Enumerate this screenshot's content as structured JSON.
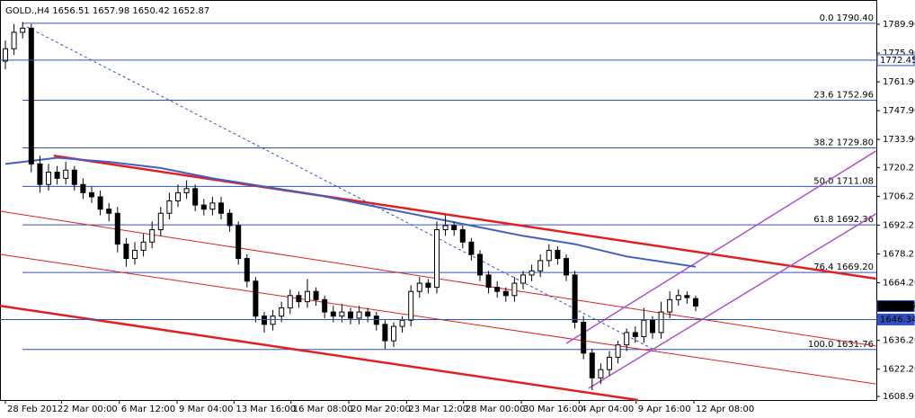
{
  "chart_data": {
    "type": "candlestick",
    "title": "GOLD.,H4  1656.51 1657.98 1650.42 1652.87",
    "x": [
      0,
      1,
      2,
      3,
      4,
      5,
      6,
      7,
      8,
      9,
      10,
      11,
      12,
      13,
      14,
      15,
      16,
      17,
      18,
      19,
      20,
      21,
      22,
      23,
      24,
      25,
      26,
      27,
      28,
      29,
      30,
      31,
      32,
      33,
      34,
      35,
      36,
      37,
      38,
      39,
      40,
      41,
      42,
      43,
      44,
      45,
      46,
      47,
      48,
      49,
      50,
      51,
      52,
      53,
      54,
      55,
      56,
      57,
      58,
      59,
      60,
      61,
      62,
      63,
      64,
      65,
      66,
      67,
      68,
      69,
      70,
      71,
      72,
      73,
      74,
      75,
      76,
      77,
      78,
      79,
      80
    ],
    "open": [
      1772,
      1778,
      1786,
      1788,
      1722,
      1712,
      1718,
      1715,
      1719,
      1712,
      1708,
      1706,
      1700,
      1698,
      1683,
      1676,
      1680,
      1684,
      1690,
      1698,
      1704,
      1708,
      1710,
      1702,
      1700,
      1703,
      1698,
      1692,
      1676,
      1665,
      1648,
      1644,
      1648,
      1652,
      1658,
      1655,
      1660,
      1656,
      1650,
      1648,
      1650,
      1647,
      1650,
      1648,
      1644,
      1636,
      1643,
      1646,
      1660,
      1664,
      1662,
      1690,
      1692,
      1690,
      1684,
      1678,
      1668,
      1662,
      1660,
      1658,
      1664,
      1668,
      1670,
      1675,
      1680,
      1676,
      1668,
      1645,
      1630,
      1618,
      1622,
      1628,
      1634,
      1640,
      1638,
      1646,
      1640,
      1650,
      1656,
      1658,
      1656.51
    ],
    "high": [
      1782,
      1790,
      1791,
      1790,
      1726,
      1722,
      1721,
      1723,
      1721,
      1715,
      1711,
      1709,
      1703,
      1701,
      1686,
      1684,
      1688,
      1694,
      1701,
      1708,
      1712,
      1714,
      1712,
      1705,
      1706,
      1706,
      1700,
      1694,
      1678,
      1667,
      1650,
      1651,
      1655,
      1661,
      1660,
      1666,
      1662,
      1658,
      1653,
      1654,
      1652,
      1653,
      1652,
      1650,
      1646,
      1645,
      1648,
      1663,
      1667,
      1666,
      1694,
      1697,
      1694,
      1692,
      1686,
      1680,
      1670,
      1665,
      1662,
      1667,
      1670,
      1673,
      1678,
      1683,
      1682,
      1678,
      1670,
      1648,
      1632,
      1625,
      1631,
      1636,
      1642,
      1643,
      1652,
      1648,
      1655,
      1660,
      1661,
      1660,
      1657.98
    ],
    "low": [
      1768,
      1775,
      1783,
      1718,
      1708,
      1709,
      1712,
      1712,
      1709,
      1705,
      1703,
      1697,
      1694,
      1679,
      1672,
      1673,
      1677,
      1681,
      1687,
      1695,
      1701,
      1705,
      1699,
      1697,
      1697,
      1695,
      1689,
      1673,
      1662,
      1645,
      1640,
      1641,
      1645,
      1649,
      1652,
      1652,
      1653,
      1647,
      1645,
      1645,
      1644,
      1644,
      1645,
      1641,
      1632,
      1633,
      1640,
      1643,
      1657,
      1659,
      1659,
      1687,
      1687,
      1681,
      1675,
      1665,
      1659,
      1657,
      1655,
      1655,
      1661,
      1665,
      1667,
      1672,
      1673,
      1665,
      1642,
      1627,
      1612,
      1615,
      1619,
      1625,
      1631,
      1635,
      1635,
      1637,
      1637,
      1647,
      1653,
      1654,
      1650.42
    ],
    "close": [
      1778,
      1786,
      1788,
      1722,
      1712,
      1718,
      1715,
      1719,
      1712,
      1708,
      1706,
      1700,
      1698,
      1683,
      1676,
      1680,
      1684,
      1690,
      1698,
      1704,
      1708,
      1710,
      1702,
      1700,
      1703,
      1698,
      1692,
      1676,
      1665,
      1648,
      1644,
      1648,
      1652,
      1658,
      1655,
      1660,
      1656,
      1650,
      1648,
      1650,
      1647,
      1650,
      1648,
      1644,
      1636,
      1643,
      1646,
      1660,
      1664,
      1662,
      1690,
      1692,
      1690,
      1684,
      1678,
      1668,
      1662,
      1660,
      1658,
      1664,
      1668,
      1670,
      1675,
      1680,
      1676,
      1668,
      1645,
      1630,
      1618,
      1622,
      1628,
      1634,
      1640,
      1638,
      1646,
      1640,
      1650,
      1656,
      1658,
      1657,
      1652.87
    ],
    "ma": {
      "color": "#3f5fc4",
      "x": [
        0,
        6,
        12,
        18,
        24,
        30,
        36,
        42,
        48,
        54,
        60,
        66,
        72,
        80
      ],
      "values": [
        1722,
        1725,
        1723,
        1720,
        1715,
        1711,
        1707,
        1702,
        1697,
        1692,
        1687,
        1683,
        1677,
        1672
      ]
    },
    "xlim": [
      -0.625,
      100.94
    ],
    "ylim": [
      1607.2,
      1801.7
    ],
    "yticks": [
      {
        "value": 1789.9,
        "label": "1789.90"
      },
      {
        "value": 1775.9,
        "label": "1775.90"
      },
      {
        "value": 1761.9,
        "label": "1761.90"
      },
      {
        "value": 1747.9,
        "label": "1747.90"
      },
      {
        "value": 1733.9,
        "label": "1733.90"
      },
      1720.25,
      1706.25,
      1692.25,
      1678.25,
      {
        "value": 1664.2,
        "label": "1664.20"
      },
      {
        "value": 1636.2,
        "label": "1636.20"
      },
      {
        "value": 1622.2,
        "label": "1622.20"
      },
      1608.93
    ],
    "xticks": [
      {
        "value": 0,
        "label": "28 Feb 2012"
      },
      {
        "value": 6.5,
        "label": "2 Mar 00:00"
      },
      {
        "value": 13.2,
        "label": "6 Mar 12:00"
      },
      {
        "value": 19.9,
        "label": "9 Mar 04:00"
      },
      {
        "value": 26.5,
        "label": "13 Mar 16:00"
      },
      {
        "value": 33.1,
        "label": "16 Mar 08:00"
      },
      {
        "value": 39.8,
        "label": "20 Mar 20:00"
      },
      {
        "value": 46.5,
        "label": "23 Mar 12:00"
      },
      {
        "value": 53.1,
        "label": "28 Mar 00:00"
      },
      {
        "value": 59.8,
        "label": "30 Mar 16:00"
      },
      {
        "value": 66.5,
        "label": "4 Apr 04:00"
      },
      {
        "value": 73.1,
        "label": "9 Apr 16:00"
      },
      {
        "value": 79.8,
        "label": "12 Apr 08:00"
      }
    ],
    "fib_levels": [
      {
        "label": "0.0 1790.40",
        "value": 1790.4
      },
      {
        "label": "23.6 1752.96",
        "value": 1752.96
      },
      {
        "label": "38.2 1729.80",
        "value": 1729.8
      },
      {
        "label": "50.0 1711.08",
        "value": 1711.08
      },
      {
        "label": "61.8 1692.36",
        "value": 1692.36
      },
      {
        "label": "76.4 1669.20",
        "value": 1669.2
      },
      {
        "label": "100.0 1631.76",
        "value": 1631.76
      }
    ],
    "fib_color": "#3050c0",
    "price_markers": [
      {
        "value": 1772.45,
        "fill": "#ffffff",
        "text": "#3050c0",
        "line": true
      },
      {
        "value": 1652.87,
        "fill": "#000000",
        "text": "#ffffff",
        "line": false
      },
      {
        "value": 1646.34,
        "fill": "#3050c0",
        "text": "#ffffff",
        "line": true
      }
    ],
    "trend_lines": [
      {
        "color": "#e02020",
        "width": 2.5,
        "dash": false,
        "points": [
          [
            5.6,
            1726
          ],
          [
            100.9,
            1666.2
          ]
        ]
      },
      {
        "color": "#e02020",
        "width": 1,
        "dash": false,
        "points": [
          [
            -0.6,
            1699
          ],
          [
            100.9,
            1633.4
          ]
        ]
      },
      {
        "color": "#e02020",
        "width": 1,
        "dash": false,
        "points": [
          [
            -0.6,
            1678
          ],
          [
            100.9,
            1615
          ]
        ]
      },
      {
        "color": "#e02020",
        "width": 2.5,
        "dash": false,
        "points": [
          [
            -0.6,
            1653
          ],
          [
            73.3,
            1607.2
          ]
        ]
      },
      {
        "color": "#b050d0",
        "width": 1.5,
        "dash": false,
        "points": [
          [
            65,
            1634.7
          ],
          [
            100.9,
            1728.3
          ]
        ]
      },
      {
        "color": "#b050d0",
        "width": 1.5,
        "dash": false,
        "points": [
          [
            67.6,
            1612.9
          ],
          [
            100.9,
            1697.7
          ]
        ]
      },
      {
        "color": "#3050c0",
        "width": 1,
        "dash": true,
        "points": [
          [
            2.5,
            1788.6
          ],
          [
            75.4,
            1631.2
          ]
        ]
      }
    ],
    "bull_color": "#ffffff",
    "bear_color": "#000000"
  }
}
